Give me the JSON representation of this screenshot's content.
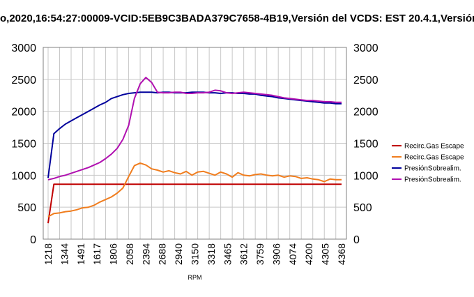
{
  "title": "o,2020,16:54:27:00009-VCID:5EB9C3BADA379C7658-4B19,Versión del VCDS: EST 20.4.1,Versión",
  "chart_data": {
    "type": "line",
    "title": "o,2020,16:54:27:00009-VCID:5EB9C3BADA379C7658-4B19,Versión del VCDS: EST 20.4.1,Versión",
    "xlabel": "RPM",
    "ylabel": "",
    "ylim": [
      0,
      3000
    ],
    "yticks": [
      "0",
      "500",
      "1000",
      "1500",
      "2000",
      "2500",
      "3000"
    ],
    "y2ticks": [
      "0",
      "500",
      "1000",
      "1500",
      "2000",
      "2500",
      "3000"
    ],
    "x_tick_labels": [
      "1218",
      "1344",
      "1491",
      "1617",
      "1806",
      "2058",
      "2394",
      "2688",
      "2940",
      "3150",
      "3318",
      "3465",
      "3612",
      "3759",
      "3906",
      "4074",
      "4200",
      "4305",
      "4368"
    ],
    "x_categories": 52,
    "grid": true,
    "legend_position": "right",
    "series": [
      {
        "name": "Recirc.Gas Escape",
        "color": "#c00000",
        "values": [
          250,
          860,
          860,
          860,
          860,
          860,
          860,
          860,
          860,
          860,
          860,
          860,
          860,
          860,
          860,
          860,
          860,
          860,
          860,
          860,
          860,
          860,
          860,
          860,
          860,
          860,
          860,
          860,
          860,
          860,
          860,
          860,
          860,
          860,
          860,
          860,
          860,
          860,
          860,
          860,
          860,
          860,
          860,
          860,
          860,
          860,
          860,
          860,
          860,
          860,
          860,
          860
        ]
      },
      {
        "name": "Recirc.Gas Escape",
        "color": "#f07d1e",
        "values": [
          350,
          400,
          410,
          430,
          440,
          460,
          490,
          500,
          530,
          580,
          620,
          660,
          720,
          800,
          980,
          1150,
          1190,
          1160,
          1100,
          1080,
          1050,
          1070,
          1040,
          1020,
          1060,
          1000,
          1050,
          1060,
          1030,
          1000,
          1050,
          1020,
          970,
          1040,
          1000,
          990,
          1010,
          1020,
          1000,
          990,
          1000,
          970,
          990,
          980,
          950,
          960,
          940,
          930,
          900,
          940,
          930,
          930
        ]
      },
      {
        "name": "PresiónSobrealim.",
        "color": "#00009c",
        "values": [
          960,
          1650,
          1730,
          1800,
          1850,
          1900,
          1950,
          2000,
          2050,
          2100,
          2140,
          2200,
          2230,
          2260,
          2280,
          2290,
          2300,
          2300,
          2300,
          2290,
          2300,
          2300,
          2290,
          2290,
          2290,
          2300,
          2300,
          2300,
          2290,
          2290,
          2280,
          2290,
          2290,
          2280,
          2280,
          2270,
          2270,
          2250,
          2240,
          2230,
          2210,
          2200,
          2190,
          2180,
          2170,
          2160,
          2150,
          2140,
          2130,
          2130,
          2120,
          2120
        ]
      },
      {
        "name": "PresiónSobrealim.",
        "color": "#b010b0",
        "values": [
          930,
          950,
          980,
          1000,
          1030,
          1060,
          1090,
          1120,
          1160,
          1200,
          1260,
          1330,
          1420,
          1560,
          1780,
          2200,
          2430,
          2530,
          2450,
          2300,
          2290,
          2290,
          2300,
          2300,
          2280,
          2280,
          2290,
          2290,
          2300,
          2330,
          2320,
          2290,
          2280,
          2290,
          2300,
          2290,
          2280,
          2270,
          2260,
          2250,
          2230,
          2210,
          2200,
          2190,
          2180,
          2170,
          2170,
          2160,
          2150,
          2150,
          2140,
          2140
        ]
      }
    ]
  }
}
